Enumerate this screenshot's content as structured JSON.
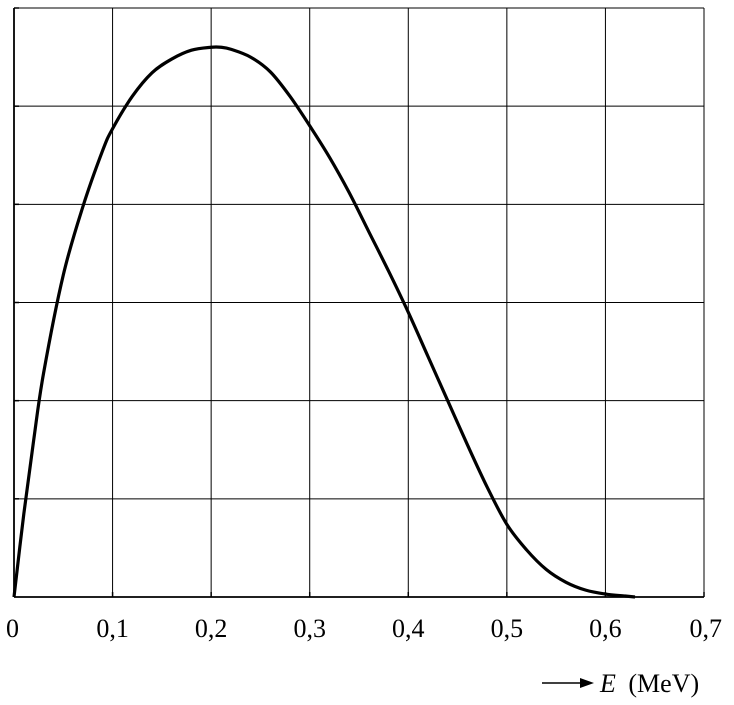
{
  "chart_data": {
    "type": "line",
    "xlabel_var": "E",
    "xlabel_unit": "(MeV)",
    "xlim": [
      0,
      0.7
    ],
    "ylim": [
      0,
      6
    ],
    "x_ticks": [
      "0",
      "0,1",
      "0,2",
      "0,3",
      "0,4",
      "0,5",
      "0,6",
      "0,7"
    ],
    "grid": true,
    "series": [
      {
        "color": "#000000",
        "x": [
          0,
          0.01,
          0.02,
          0.03,
          0.05,
          0.07,
          0.09,
          0.1,
          0.12,
          0.14,
          0.16,
          0.18,
          0.2,
          0.21,
          0.22,
          0.24,
          0.26,
          0.28,
          0.3,
          0.32,
          0.34,
          0.36,
          0.38,
          0.4,
          0.42,
          0.44,
          0.46,
          0.48,
          0.5,
          0.52,
          0.54,
          0.56,
          0.58,
          0.6,
          0.62,
          0.63
        ],
        "y": [
          0,
          0.85,
          1.6,
          2.28,
          3.28,
          3.98,
          4.55,
          4.77,
          5.1,
          5.34,
          5.48,
          5.57,
          5.6,
          5.6,
          5.58,
          5.5,
          5.35,
          5.1,
          4.8,
          4.48,
          4.12,
          3.72,
          3.32,
          2.9,
          2.45,
          2.0,
          1.55,
          1.12,
          0.74,
          0.48,
          0.28,
          0.15,
          0.07,
          0.03,
          0.01,
          0
        ]
      }
    ]
  }
}
